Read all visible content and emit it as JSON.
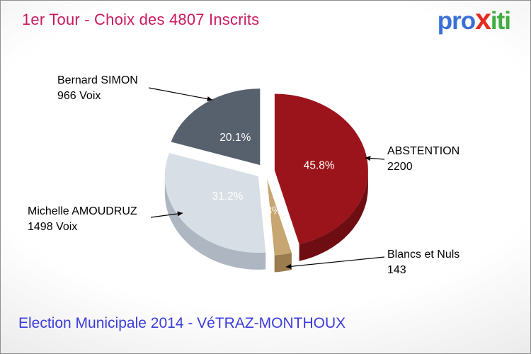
{
  "header": {
    "title": "1er Tour - Choix des 4807 Inscrits",
    "logo": {
      "pro": "pro",
      "x": "x",
      "iti": "iti"
    }
  },
  "footer": {
    "text": "Election Municipale 2014 - VéTRAZ-MONTHOUX"
  },
  "colors": {
    "title": "#c9195e",
    "footer": "#3c3cdb",
    "logo_pro": "#3a6fd8",
    "logo_x": "#e52b1e",
    "logo_iti": "#3fae3f",
    "callout_text": "#000000",
    "percent_text": "#ffffff"
  },
  "chart_data": {
    "type": "pie",
    "title": "1er Tour - Choix des 4807 Inscrits",
    "total": 4807,
    "legend_position": "callouts",
    "start_angle_deg": 0,
    "slices": [
      {
        "label": "ABSTENTION",
        "sublabel": "2200",
        "value": 2200,
        "pct": "45.8%",
        "color": "#9b141b",
        "side_color": "#6e0e13",
        "label_r": 0.48
      },
      {
        "label": "Blancs et Nuls",
        "sublabel": "143",
        "value": 143,
        "pct": "3%",
        "color": "#c7a671",
        "side_color": "#9a7c4e",
        "label_r": 0.42
      },
      {
        "label": "Michelle AMOUDRUZ",
        "sublabel": "1498 Voix",
        "value": 1498,
        "pct": "31.2%",
        "color": "#d8dee5",
        "side_color": "#aeb7c1",
        "label_r": 0.42
      },
      {
        "label": "Bernard SIMON",
        "sublabel": "966 Voix",
        "value": 966,
        "pct": "20.1%",
        "color": "#57616e",
        "side_color": "#3c4450",
        "label_r": 0.45
      }
    ]
  }
}
